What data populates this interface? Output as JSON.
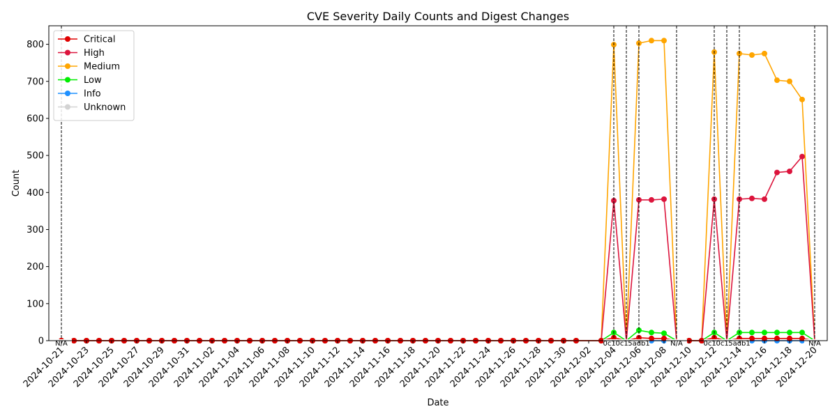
{
  "chart_data": {
    "type": "line",
    "title": "CVE Severity Daily Counts and Digest Changes",
    "xlabel": "Date",
    "ylabel": "Count",
    "ylim": [
      0,
      850
    ],
    "yticks": [
      0,
      100,
      200,
      300,
      400,
      500,
      600,
      700,
      800
    ],
    "xlim": [
      "2024-10-20",
      "2024-12-21"
    ],
    "xticks": [
      "2024-10-21",
      "2024-10-23",
      "2024-10-25",
      "2024-10-27",
      "2024-10-29",
      "2024-10-31",
      "2024-11-02",
      "2024-11-04",
      "2024-11-06",
      "2024-11-08",
      "2024-11-10",
      "2024-11-12",
      "2024-11-14",
      "2024-11-16",
      "2024-11-18",
      "2024-11-20",
      "2024-11-22",
      "2024-11-24",
      "2024-11-26",
      "2024-11-28",
      "2024-11-30",
      "2024-12-02",
      "2024-12-04",
      "2024-12-06",
      "2024-12-08",
      "2024-12-10",
      "2024-12-12",
      "2024-12-14",
      "2024-12-16",
      "2024-12-18",
      "2024-12-20"
    ],
    "grid": false,
    "legend_position": "top-left",
    "dates": [
      "2024-10-21",
      "2024-10-22",
      "2024-10-23",
      "2024-10-24",
      "2024-10-25",
      "2024-10-26",
      "2024-10-27",
      "2024-10-28",
      "2024-10-29",
      "2024-10-30",
      "2024-10-31",
      "2024-11-01",
      "2024-11-02",
      "2024-11-03",
      "2024-11-04",
      "2024-11-05",
      "2024-11-06",
      "2024-11-07",
      "2024-11-08",
      "2024-11-09",
      "2024-11-10",
      "2024-11-11",
      "2024-11-12",
      "2024-11-13",
      "2024-11-14",
      "2024-11-15",
      "2024-11-16",
      "2024-11-17",
      "2024-11-18",
      "2024-11-19",
      "2024-11-20",
      "2024-11-21",
      "2024-11-22",
      "2024-11-23",
      "2024-11-24",
      "2024-11-25",
      "2024-11-26",
      "2024-11-27",
      "2024-11-28",
      "2024-11-29",
      "2024-11-30",
      "2024-12-01",
      "2024-12-02",
      "2024-12-03",
      "2024-12-04",
      "2024-12-05",
      "2024-12-06",
      "2024-12-07",
      "2024-12-08",
      "2024-12-09",
      "2024-12-10",
      "2024-12-11",
      "2024-12-12",
      "2024-12-13",
      "2024-12-14",
      "2024-12-15",
      "2024-12-16",
      "2024-12-17",
      "2024-12-18",
      "2024-12-19",
      "2024-12-20"
    ],
    "series": [
      {
        "name": "Critical",
        "color": "#e00000",
        "values": [
          0,
          0,
          0,
          0,
          0,
          0,
          0,
          0,
          0,
          0,
          0,
          0,
          0,
          0,
          0,
          0,
          0,
          0,
          0,
          0,
          0,
          0,
          0,
          0,
          0,
          0,
          0,
          0,
          0,
          0,
          0,
          0,
          0,
          0,
          0,
          0,
          0,
          0,
          0,
          0,
          0,
          0,
          0,
          0,
          8,
          0,
          8,
          6,
          6,
          0,
          0,
          0,
          8,
          0,
          6,
          6,
          6,
          6,
          6,
          6,
          0
        ]
      },
      {
        "name": "High",
        "color": "#dc143c",
        "values": [
          0,
          0,
          0,
          0,
          0,
          0,
          0,
          0,
          0,
          0,
          0,
          0,
          0,
          0,
          0,
          0,
          0,
          0,
          0,
          0,
          0,
          0,
          0,
          0,
          0,
          0,
          0,
          0,
          0,
          0,
          0,
          0,
          0,
          0,
          0,
          0,
          0,
          0,
          0,
          0,
          0,
          0,
          0,
          0,
          378,
          0,
          380,
          380,
          382,
          0,
          0,
          0,
          382,
          0,
          382,
          384,
          382,
          454,
          457,
          497,
          0
        ]
      },
      {
        "name": "Medium",
        "color": "#ffa500",
        "values": [
          0,
          0,
          0,
          0,
          0,
          0,
          0,
          0,
          0,
          0,
          0,
          0,
          0,
          0,
          0,
          0,
          0,
          0,
          0,
          0,
          0,
          0,
          0,
          0,
          0,
          0,
          0,
          0,
          0,
          0,
          0,
          0,
          0,
          0,
          0,
          0,
          0,
          0,
          0,
          0,
          0,
          0,
          0,
          0,
          799,
          0,
          803,
          810,
          810,
          0,
          0,
          0,
          779,
          0,
          775,
          771,
          775,
          703,
          700,
          651,
          0
        ]
      },
      {
        "name": "Low",
        "color": "#00ee00",
        "values": [
          0,
          0,
          0,
          0,
          0,
          0,
          0,
          0,
          0,
          0,
          0,
          0,
          0,
          0,
          0,
          0,
          0,
          0,
          0,
          0,
          0,
          0,
          0,
          0,
          0,
          0,
          0,
          0,
          0,
          0,
          0,
          0,
          0,
          0,
          0,
          0,
          0,
          0,
          0,
          0,
          0,
          0,
          0,
          0,
          22,
          0,
          28,
          22,
          20,
          0,
          0,
          0,
          22,
          0,
          22,
          22,
          22,
          22,
          22,
          22,
          0
        ]
      },
      {
        "name": "Info",
        "color": "#1e90ff",
        "values": [
          0,
          0,
          0,
          0,
          0,
          0,
          0,
          0,
          0,
          0,
          0,
          0,
          0,
          0,
          0,
          0,
          0,
          0,
          0,
          0,
          0,
          0,
          0,
          0,
          0,
          0,
          0,
          0,
          0,
          0,
          0,
          0,
          0,
          0,
          0,
          0,
          0,
          0,
          0,
          0,
          0,
          0,
          0,
          0,
          0,
          0,
          0,
          0,
          0,
          0,
          0,
          0,
          0,
          0,
          0,
          0,
          0,
          0,
          0,
          0,
          0
        ]
      },
      {
        "name": "Unknown",
        "color": "#d3d3d3",
        "values": [
          0,
          0,
          0,
          0,
          0,
          0,
          0,
          0,
          0,
          0,
          0,
          0,
          0,
          0,
          0,
          0,
          0,
          0,
          0,
          0,
          0,
          0,
          0,
          0,
          0,
          0,
          0,
          0,
          0,
          0,
          0,
          0,
          0,
          0,
          0,
          0,
          0,
          0,
          0,
          0,
          0,
          0,
          0,
          0,
          0,
          0,
          0,
          0,
          0,
          0,
          0,
          0,
          0,
          0,
          0,
          0,
          0,
          0,
          0,
          0,
          0
        ]
      }
    ],
    "marker_dates": [
      "2024-10-21",
      "2024-10-22",
      "2024-10-23",
      "2024-10-24",
      "2024-10-25",
      "2024-10-26",
      "2024-10-27",
      "2024-10-28",
      "2024-10-29",
      "2024-10-30",
      "2024-10-31",
      "2024-11-01",
      "2024-11-02",
      "2024-11-03",
      "2024-11-04",
      "2024-11-05",
      "2024-11-06",
      "2024-11-07",
      "2024-11-08",
      "2024-11-09",
      "2024-11-10",
      "2024-11-11",
      "2024-11-12",
      "2024-11-13",
      "2024-11-14",
      "2024-11-15",
      "2024-11-16",
      "2024-11-17",
      "2024-11-18",
      "2024-11-19",
      "2024-11-20",
      "2024-11-21",
      "2024-11-22",
      "2024-11-23",
      "2024-11-24",
      "2024-11-25",
      "2024-11-26",
      "2024-11-27",
      "2024-11-28",
      "2024-11-29",
      "2024-11-30",
      "2024-12-01",
      "2024-12-03",
      "2024-12-04",
      "2024-12-06",
      "2024-12-07",
      "2024-12-08",
      "2024-12-10",
      "2024-12-11",
      "2024-12-12",
      "2024-12-14",
      "2024-12-15",
      "2024-12-16",
      "2024-12-17",
      "2024-12-18",
      "2024-12-19"
    ],
    "digest_changes": [
      {
        "date": "2024-10-21",
        "label": "N/A"
      },
      {
        "date": "2024-12-04",
        "label": "0c162"
      },
      {
        "date": "2024-12-05",
        "label": "0c162"
      },
      {
        "date": "2024-12-06",
        "label": "5adb1"
      },
      {
        "date": "2024-12-09",
        "label": "N/A"
      },
      {
        "date": "2024-12-12",
        "label": "0c162"
      },
      {
        "date": "2024-12-13",
        "label": "0c162"
      },
      {
        "date": "2024-12-14",
        "label": "5adb1"
      },
      {
        "date": "2024-12-20",
        "label": "N/A"
      }
    ]
  }
}
